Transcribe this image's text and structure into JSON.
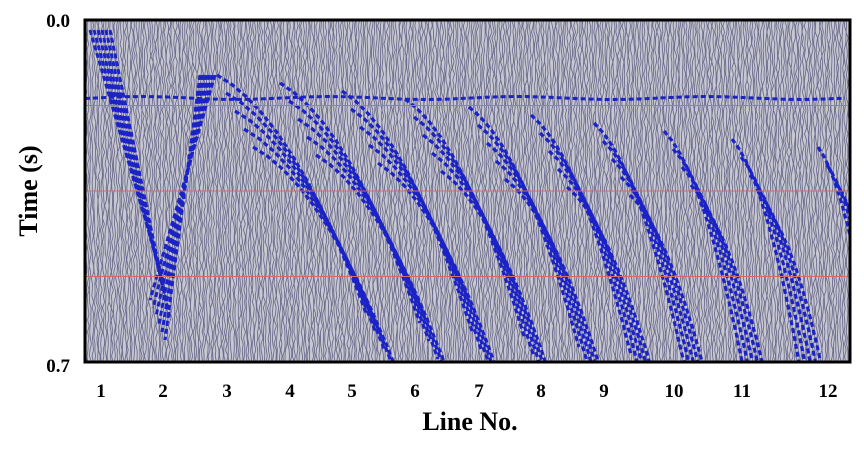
{
  "chart_data": {
    "type": "seismic-section",
    "xlabel": "Line No.",
    "ylabel": "Time (s)",
    "x_ticks": [
      "1",
      "2",
      "3",
      "4",
      "5",
      "6",
      "7",
      "8",
      "9",
      "10",
      "11",
      "12"
    ],
    "y_ticks": [
      "0.0",
      "0.7"
    ],
    "ylim": [
      0.0,
      0.7
    ],
    "y_inverted": true,
    "timing_lines_s": [
      0.175,
      0.35,
      0.525
    ],
    "grid": false,
    "legend": "none",
    "colors": {
      "trace_positive": "#1a22c8",
      "trace_wiggle": "#6c6c8c",
      "background": "#c8c8d2",
      "timing_line": "#d46a6a",
      "frame": "#000000"
    }
  }
}
